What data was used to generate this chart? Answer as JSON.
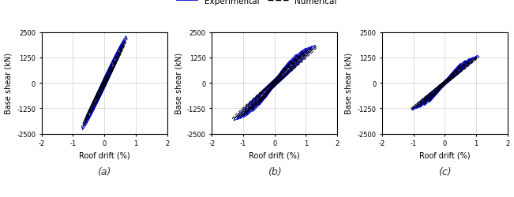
{
  "title": "",
  "legend_labels": [
    "Experimental",
    "Numerical"
  ],
  "legend_colors": [
    "#0000cc",
    "#000000"
  ],
  "subplot_labels": [
    "(a)",
    "(b)",
    "(c)"
  ],
  "xlabel": "Roof drift (%)",
  "ylabel": "Base shear (kN)",
  "xlim": [
    -2,
    2
  ],
  "ylim": [
    -2500,
    2500
  ],
  "xticks": [
    -2,
    -1,
    0,
    1,
    2
  ],
  "yticks": [
    -2500,
    -1250,
    0,
    1250,
    2500
  ],
  "ytick_labels": [
    "-2500",
    "-1250",
    "0",
    "1250",
    "2500"
  ],
  "exp_color": "#0000cc",
  "num_color": "#000000",
  "background_color": "#ffffff",
  "grid_color": "#aaaaaa",
  "spec1_amp_d": [
    0.08,
    0.15,
    0.25,
    0.35,
    0.45,
    0.55,
    0.6,
    0.65,
    0.7
  ],
  "spec1_amp_s": [
    200,
    450,
    800,
    1100,
    1500,
    1800,
    2000,
    2100,
    2300
  ],
  "spec1_rep": [
    2,
    2,
    2,
    2,
    2,
    2,
    3,
    3,
    2
  ],
  "spec1_phase": 0.12,
  "spec2_amp_d": [
    0.1,
    0.2,
    0.3,
    0.5,
    0.7,
    0.9,
    1.0,
    1.1,
    1.2,
    1.3
  ],
  "spec2_amp_s": [
    200,
    450,
    750,
    1100,
    1400,
    1600,
    1700,
    1750,
    1800,
    1850
  ],
  "spec2_rep": [
    2,
    2,
    2,
    2,
    2,
    2,
    2,
    2,
    3,
    2
  ],
  "spec2_phase": 0.1,
  "spec3_amp_d": [
    0.1,
    0.2,
    0.35,
    0.5,
    0.65,
    0.8,
    0.9,
    1.0,
    1.05
  ],
  "spec3_amp_s": [
    150,
    350,
    650,
    950,
    1100,
    1200,
    1250,
    1300,
    1350
  ],
  "spec3_rep": [
    2,
    2,
    2,
    2,
    2,
    3,
    3,
    2,
    2
  ],
  "spec3_phase": 0.08
}
